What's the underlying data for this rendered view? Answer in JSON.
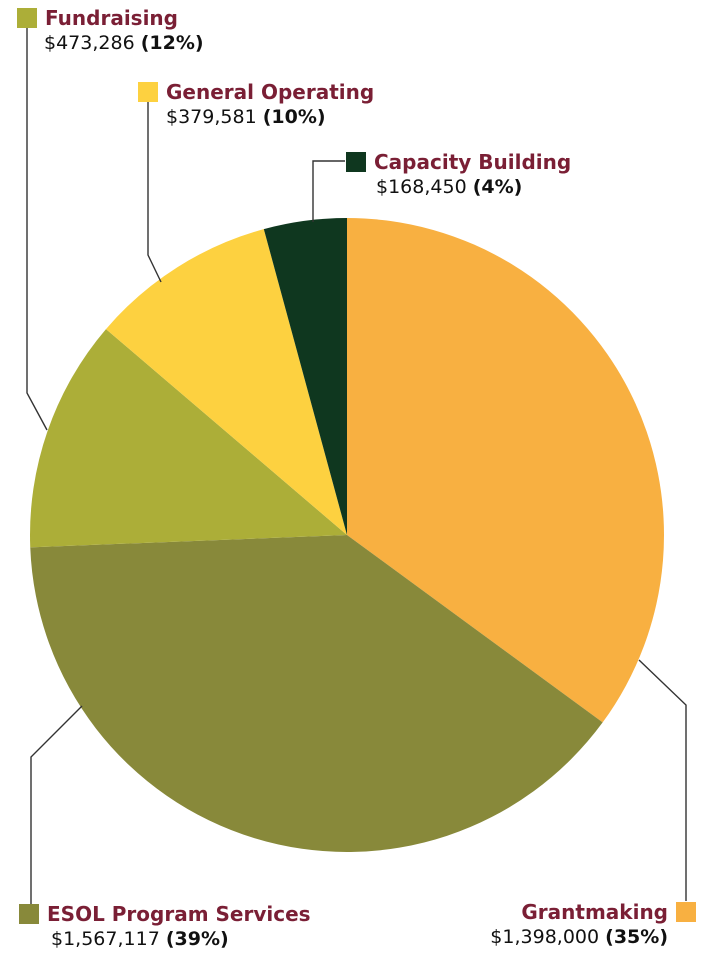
{
  "chart_data": {
    "type": "pie",
    "slices": [
      {
        "name": "Grantmaking",
        "amount": "$1,398,000",
        "percent": "35%",
        "value": 1398000,
        "color": "#f8b041"
      },
      {
        "name": "ESOL Program Services",
        "amount": "$1,567,117",
        "percent": "39%",
        "value": 1567117,
        "color": "#88893a"
      },
      {
        "name": "Fundraising",
        "amount": "$473,286",
        "percent": "12%",
        "value": 473286,
        "color": "#acae38"
      },
      {
        "name": "General Operating",
        "amount": "$379,581",
        "percent": "10%",
        "value": 379581,
        "color": "#fdd140"
      },
      {
        "name": "Capacity Building",
        "amount": "$168,450",
        "percent": "4%",
        "value": 168450,
        "color": "#0f371f"
      }
    ]
  }
}
